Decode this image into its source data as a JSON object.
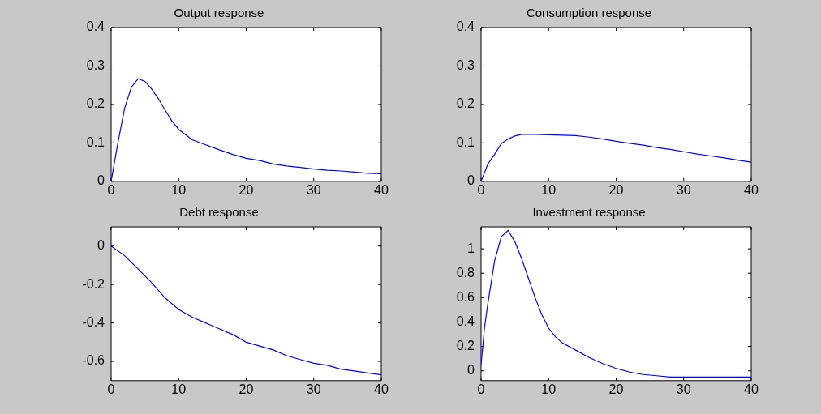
{
  "chart_data": [
    {
      "type": "line",
      "title": "Output response",
      "color": "#0000ff",
      "marker": "none",
      "xlim": [
        0,
        40
      ],
      "xticks": [
        0,
        10,
        20,
        30,
        40
      ],
      "ylim": [
        0,
        0.4
      ],
      "yticks": [
        0,
        0.1,
        0.2,
        0.3,
        0.4
      ],
      "x": [
        0,
        1,
        2,
        3,
        4,
        5,
        6,
        7,
        8,
        9,
        10,
        12,
        14,
        16,
        18,
        20,
        22,
        24,
        26,
        28,
        30,
        32,
        34,
        36,
        38,
        40
      ],
      "values": [
        0,
        0.1,
        0.19,
        0.245,
        0.267,
        0.26,
        0.24,
        0.215,
        0.185,
        0.157,
        0.135,
        0.108,
        0.095,
        0.082,
        0.07,
        0.06,
        0.054,
        0.045,
        0.04,
        0.036,
        0.032,
        0.029,
        0.027,
        0.024,
        0.021,
        0.02
      ]
    },
    {
      "type": "line",
      "title": "Consumption response",
      "color": "#0000ff",
      "marker": "none",
      "xlim": [
        0,
        40
      ],
      "xticks": [
        0,
        10,
        20,
        30,
        40
      ],
      "ylim": [
        0,
        0.4
      ],
      "yticks": [
        0,
        0.1,
        0.2,
        0.3,
        0.4
      ],
      "x": [
        0,
        1,
        2,
        3,
        4,
        5,
        6,
        8,
        10,
        12,
        14,
        16,
        18,
        20,
        22,
        24,
        26,
        28,
        30,
        32,
        34,
        36,
        38,
        40
      ],
      "values": [
        0,
        0.045,
        0.07,
        0.098,
        0.11,
        0.118,
        0.122,
        0.122,
        0.121,
        0.12,
        0.119,
        0.115,
        0.11,
        0.104,
        0.099,
        0.094,
        0.088,
        0.083,
        0.077,
        0.071,
        0.066,
        0.061,
        0.055,
        0.05
      ]
    },
    {
      "type": "line",
      "title": "Debt response",
      "color": "#0000ff",
      "marker": "none",
      "xlim": [
        0,
        40
      ],
      "xticks": [
        0,
        10,
        20,
        30,
        40
      ],
      "ylim": [
        -0.7,
        0.1
      ],
      "yticks": [
        -0.6,
        -0.4,
        -0.2,
        0
      ],
      "x": [
        0,
        2,
        4,
        6,
        8,
        10,
        12,
        14,
        16,
        18,
        20,
        22,
        24,
        26,
        28,
        30,
        32,
        34,
        36,
        38,
        40
      ],
      "values": [
        0,
        -0.05,
        -0.12,
        -0.19,
        -0.27,
        -0.33,
        -0.37,
        -0.4,
        -0.43,
        -0.46,
        -0.5,
        -0.52,
        -0.54,
        -0.57,
        -0.59,
        -0.61,
        -0.62,
        -0.64,
        -0.65,
        -0.66,
        -0.67
      ]
    },
    {
      "type": "line",
      "title": "Investment response",
      "color": "#0000ff",
      "marker": "none",
      "xlim": [
        0,
        40
      ],
      "xticks": [
        0,
        10,
        20,
        30,
        40
      ],
      "ylim": [
        -0.08,
        1.18
      ],
      "yticks": [
        0,
        0.2,
        0.4,
        0.6,
        0.8,
        1
      ],
      "x": [
        0,
        0.5,
        1,
        2,
        3,
        4,
        5,
        6,
        7,
        8,
        9,
        10,
        11,
        12,
        14,
        16,
        18,
        20,
        22,
        24,
        26,
        28,
        30,
        35,
        40
      ],
      "values": [
        0.05,
        0.35,
        0.55,
        0.9,
        1.1,
        1.15,
        1.06,
        0.92,
        0.76,
        0.6,
        0.46,
        0.35,
        0.28,
        0.23,
        0.17,
        0.11,
        0.06,
        0.02,
        -0.01,
        -0.03,
        -0.04,
        -0.05,
        -0.05,
        -0.05,
        -0.05
      ]
    }
  ]
}
